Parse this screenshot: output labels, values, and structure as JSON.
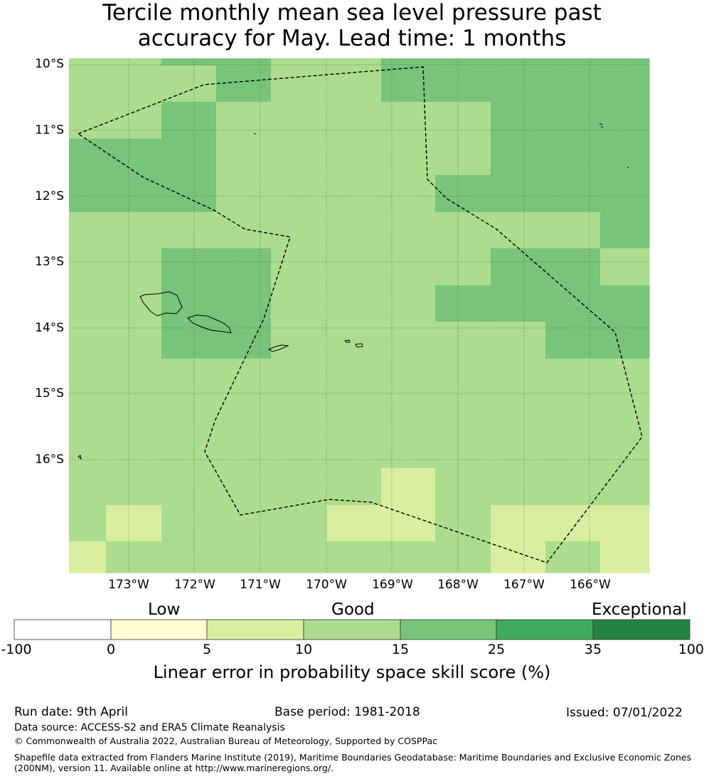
{
  "title_line1": "Tercile monthly mean sea level pressure past",
  "title_line2": "accuracy for May. Lead time: 1 months",
  "map": {
    "lat_labels": [
      "10°S",
      "11°S",
      "12°S",
      "13°S",
      "14°S",
      "15°S",
      "16°S"
    ],
    "lon_labels": [
      "173°W",
      "172°W",
      "171°W",
      "170°W",
      "169°W",
      "168°W",
      "167°W",
      "166°W"
    ],
    "colors": {
      "c1": "#d9eea1",
      "c2": "#acdc8e",
      "c3": "#77c47a",
      "boundary": "#000000",
      "coast": "#000000"
    },
    "skill_grid_classes": [
      [
        "c2",
        "c2",
        "c3",
        "c3",
        "c2",
        "c2",
        "c3",
        "c3",
        "c3",
        "c3",
        "c3"
      ],
      [
        "c2",
        "c2",
        "c2",
        "c3",
        "c2",
        "c2",
        "c3",
        "c3",
        "c3",
        "c3",
        "c3"
      ],
      [
        "c2",
        "c2",
        "c3",
        "c2",
        "c2",
        "c2",
        "c2",
        "c2",
        "c3",
        "c3",
        "c3"
      ],
      [
        "c3",
        "c3",
        "c3",
        "c2",
        "c2",
        "c2",
        "c2",
        "c2",
        "c3",
        "c3",
        "c3"
      ],
      [
        "c3",
        "c3",
        "c3",
        "c2",
        "c2",
        "c2",
        "c2",
        "c3",
        "c3",
        "c3",
        "c3"
      ],
      [
        "c2",
        "c2",
        "c2",
        "c2",
        "c2",
        "c2",
        "c2",
        "c2",
        "c2",
        "c2",
        "c3"
      ],
      [
        "c2",
        "c2",
        "c3",
        "c3",
        "c2",
        "c2",
        "c2",
        "c2",
        "c3",
        "c3",
        "c2"
      ],
      [
        "c2",
        "c2",
        "c3",
        "c3",
        "c2",
        "c2",
        "c2",
        "c3",
        "c3",
        "c3",
        "c3"
      ],
      [
        "c2",
        "c2",
        "c3",
        "c3",
        "c2",
        "c2",
        "c2",
        "c2",
        "c2",
        "c3",
        "c3"
      ],
      [
        "c2",
        "c2",
        "c2",
        "c2",
        "c2",
        "c2",
        "c2",
        "c2",
        "c2",
        "c2",
        "c2"
      ],
      [
        "c2",
        "c2",
        "c2",
        "c2",
        "c2",
        "c2",
        "c2",
        "c2",
        "c2",
        "c2",
        "c2"
      ],
      [
        "c2",
        "c2",
        "c2",
        "c2",
        "c2",
        "c2",
        "c2",
        "c2",
        "c2",
        "c2",
        "c2"
      ],
      [
        "c2",
        "c2",
        "c2",
        "c2",
        "c2",
        "c2",
        "c1",
        "c2",
        "c2",
        "c2",
        "c2"
      ],
      [
        "c2",
        "c1",
        "c2",
        "c2",
        "c2",
        "c1",
        "c1",
        "c2",
        "c1",
        "c1",
        "c1"
      ],
      [
        "c1",
        "c2",
        "c2",
        "c2",
        "c2",
        "c2",
        "c2",
        "c2",
        "c1",
        "c2",
        "c1"
      ]
    ]
  },
  "colorbar": {
    "group_labels": [
      "Low",
      "Good",
      "Exceptional"
    ],
    "tick_labels": [
      "-100",
      "0",
      "5",
      "10",
      "15",
      "25",
      "35",
      "100"
    ],
    "colors": [
      "#ffffff",
      "#fffdd0",
      "#d9eea1",
      "#acdc8e",
      "#77c47a",
      "#41ab5d",
      "#238443"
    ],
    "title": "Linear error in probability space skill score (%)"
  },
  "footer": {
    "run_date": "Run date: 9th April",
    "base_period": "Base period: 1981-2018",
    "issued": "Issued: 07/01/2022",
    "data_source": "Data source: ACCESS-S2 and ERA5 Climate Reanalysis",
    "copyright": "© Commonwealth of Australia 2022, Australian Bureau of Meteorology, Supported by COSPPac",
    "shapefile_line1": "Shapefile data extracted from Flanders Marine Institute (2019), Maritime Boundaries Geodatabase: Maritime Boundaries and Exclusive Economic Zones",
    "shapefile_line2": "(200NM), version 11. Available online at http://www.marineregions.org/."
  }
}
